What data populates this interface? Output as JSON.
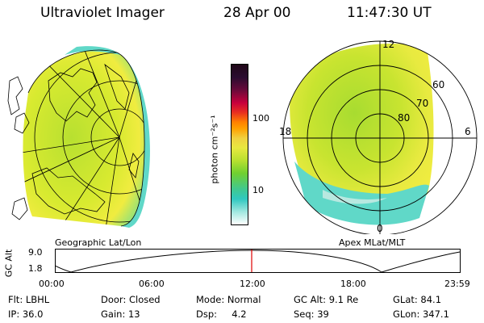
{
  "header": {
    "title": "Ultraviolet Imager",
    "date": "28 Apr 00",
    "time": "11:47:30 UT"
  },
  "geo_panel": {
    "caption": "Geographic Lat/Lon"
  },
  "polar_panel": {
    "caption": "Apex MLat/MLT",
    "mlt_labels": [
      "12",
      "18",
      "6",
      "0"
    ],
    "lat_labels": [
      "60",
      "70",
      "80"
    ]
  },
  "colorbar": {
    "unit_label": "photon cm⁻²s⁻¹",
    "tick_labels": [
      "100",
      "10"
    ],
    "colors": [
      "#2a0c24",
      "#c8003c",
      "#ffa000",
      "#f0e040",
      "#60d030",
      "#30c8c0",
      "#ffffff"
    ]
  },
  "altitude_plot": {
    "ylabel": "GC Alt",
    "ytick_labels": [
      "9.0",
      "1.8"
    ],
    "xtick_labels": [
      "00:00",
      "06:00",
      "12:00",
      "18:00",
      "23:59"
    ],
    "marker_time": "11:47:30",
    "marker_color": "#e00000"
  },
  "info": {
    "flt": "Flt: LBHL",
    "door": "Door: Closed",
    "mode": "Mode: Normal",
    "gcalt": "GC Alt: 9.1 Re",
    "glat": "GLat:  84.1",
    "ip": "IP: 36.0",
    "gain": "Gain: 13",
    "dsp": "Dsp:     4.2",
    "seq": "Seq: 39",
    "glon": "GLon: 347.1"
  }
}
